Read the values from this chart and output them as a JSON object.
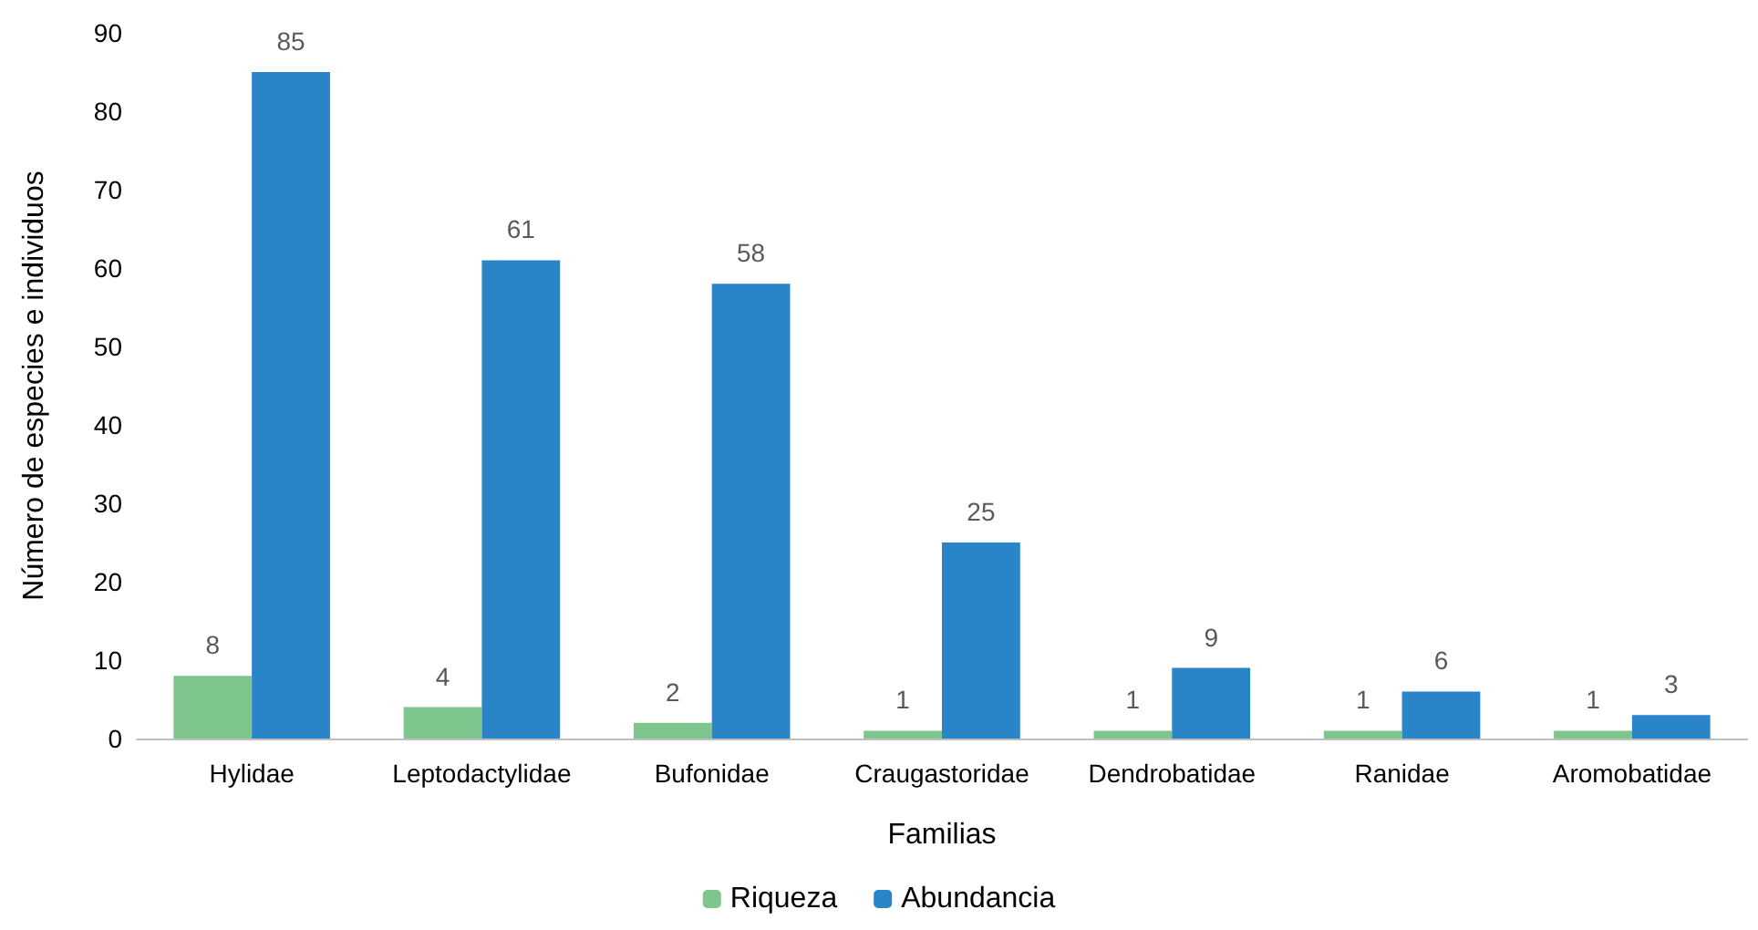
{
  "chart_data": {
    "type": "bar",
    "xlabel": "Familias",
    "ylabel": "Número de especies e individuos",
    "categories": [
      "Hylidae",
      "Leptodactylidae",
      "Bufonidae",
      "Craugastoridae",
      "Dendrobatidae",
      "Ranidae",
      "Aromobatidae"
    ],
    "series": [
      {
        "name": "Riqueza",
        "color": "#7fc68e",
        "values": [
          8,
          4,
          2,
          1,
          1,
          1,
          1
        ]
      },
      {
        "name": "Abundancia",
        "color": "#2a84c8",
        "values": [
          85,
          61,
          58,
          25,
          9,
          6,
          3
        ]
      }
    ],
    "ylim": [
      0,
      90
    ],
    "yticks": [
      0,
      10,
      20,
      30,
      40,
      50,
      60,
      70,
      80,
      90
    ],
    "grid": false,
    "legend": "bottom",
    "data_labels": true
  }
}
